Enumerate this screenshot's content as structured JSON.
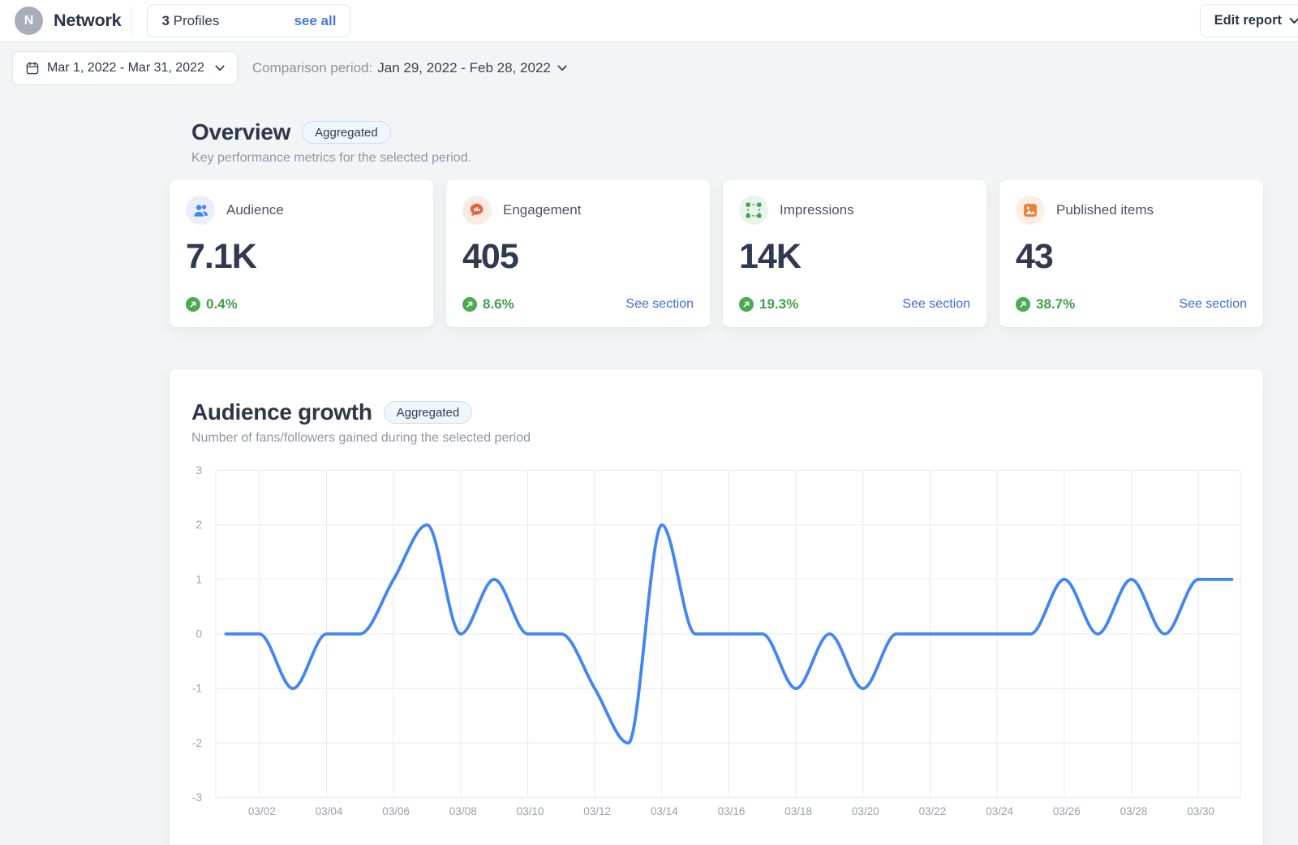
{
  "header": {
    "avatar_letter": "N",
    "title": "Network",
    "profiles_count": "3",
    "profiles_label": " Profiles",
    "see_all": "see all",
    "edit_report": "Edit report"
  },
  "toolbar": {
    "date_range": "Mar 1, 2022 - Mar 31, 2022",
    "comparison_label": "Comparison period:",
    "comparison_value": "Jan 29, 2022 - Feb 28, 2022"
  },
  "overview": {
    "title": "Overview",
    "badge": "Aggregated",
    "subtitle": "Key performance metrics for the selected period.",
    "cards": [
      {
        "label": "Audience",
        "value": "7.1K",
        "change": "0.4%",
        "icon": "audience-icon",
        "link": ""
      },
      {
        "label": "Engagement",
        "value": "405",
        "change": "8.6%",
        "icon": "engagement-icon",
        "link": "See section"
      },
      {
        "label": "Impressions",
        "value": "14K",
        "change": "19.3%",
        "icon": "impressions-icon",
        "link": "See section"
      },
      {
        "label": "Published items",
        "value": "43",
        "change": "38.7%",
        "icon": "published-items-icon",
        "link": "See section"
      }
    ]
  },
  "growth": {
    "title": "Audience growth",
    "badge": "Aggregated",
    "subtitle": "Number of fans/followers gained during the selected period"
  },
  "chart_data": {
    "type": "line",
    "title": "Audience growth",
    "xlabel": "",
    "ylabel": "",
    "dates": [
      "03/01",
      "03/02",
      "03/03",
      "03/04",
      "03/05",
      "03/06",
      "03/07",
      "03/08",
      "03/09",
      "03/10",
      "03/11",
      "03/12",
      "03/13",
      "03/14",
      "03/15",
      "03/16",
      "03/17",
      "03/18",
      "03/19",
      "03/20",
      "03/21",
      "03/22",
      "03/23",
      "03/24",
      "03/25",
      "03/26",
      "03/27",
      "03/28",
      "03/29",
      "03/30",
      "03/31"
    ],
    "values": [
      0,
      0,
      -1,
      0,
      0,
      1,
      2,
      0,
      1,
      0,
      0,
      -1,
      -2,
      2,
      0,
      0,
      0,
      -1,
      0,
      -1,
      0,
      0,
      0,
      0,
      0,
      1,
      0,
      1,
      0,
      1,
      1
    ],
    "x_tick_labels": [
      "03/02",
      "03/04",
      "03/06",
      "03/08",
      "03/10",
      "03/12",
      "03/14",
      "03/16",
      "03/18",
      "03/20",
      "03/22",
      "03/24",
      "03/26",
      "03/28",
      "03/30"
    ],
    "y_ticks": [
      3,
      2,
      1,
      0,
      -1,
      -2,
      -3
    ],
    "ylim": [
      -3,
      3
    ],
    "grid": true,
    "legend_position": "none",
    "interpolation": "monotone",
    "line_color": "#4285f4"
  },
  "colors": {
    "accent_blue": "#4285f4",
    "link_blue": "#3f6cd9",
    "green": "#3f9e4a",
    "green_badge": "#4aab51",
    "audience_blue": "#4285f4",
    "engagement_red": "#e2643f",
    "impressions_green": "#4a9e57",
    "published_orange": "#ea7f38",
    "page_bg": "#f3f4f6"
  }
}
